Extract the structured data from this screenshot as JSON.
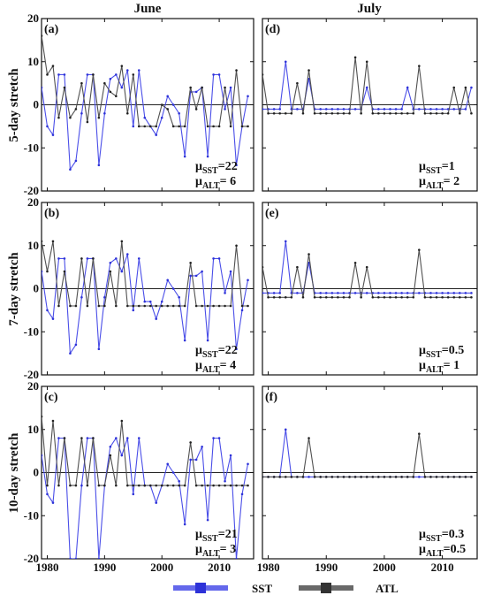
{
  "columns": [
    "June",
    "July"
  ],
  "row_labels": [
    "5-day stretch",
    "7-day stretch",
    "10-day stretch"
  ],
  "legend": [
    {
      "name": "SST",
      "color": "#4a4ee8"
    },
    {
      "name": "ATL",
      "color": "#505050"
    }
  ],
  "x_ticks": [
    1980,
    1990,
    2000,
    2010
  ],
  "chart_data": [
    {
      "type": "line",
      "panel_label": "(a)",
      "xlim": [
        1979,
        2016
      ],
      "ylim": [
        -20,
        20
      ],
      "yticks": [
        -20,
        -10,
        0,
        10,
        20
      ],
      "mu_lines": [
        {
          "sub": "SST",
          "value": "=22"
        },
        {
          "sub": "ALT",
          "value": "= 6"
        }
      ],
      "series": [
        {
          "name": "SST",
          "x": [
            1979,
            1980,
            1981,
            1982,
            1983,
            1984,
            1985,
            1986,
            1987,
            1988,
            1989,
            1990,
            1991,
            1992,
            1993,
            1994,
            1995,
            1996,
            1997,
            1998,
            1999,
            2000,
            2001,
            2002,
            2003,
            2004,
            2005,
            2006,
            2007,
            2008,
            2009,
            2010,
            2011,
            2012,
            2013,
            2014,
            2015
          ],
          "values": [
            4,
            -5,
            -7,
            7,
            7,
            -15,
            -13,
            -2,
            7,
            7,
            -14,
            -2,
            6,
            7,
            4,
            8,
            -5,
            8,
            -3,
            -5,
            -7,
            -3,
            2,
            0,
            -2,
            -12,
            3,
            3,
            4,
            -12,
            7,
            7,
            -1,
            4,
            -14,
            -5,
            2
          ]
        },
        {
          "name": "ATL",
          "x": [
            1979,
            1980,
            1981,
            1982,
            1983,
            1984,
            1985,
            1986,
            1987,
            1988,
            1989,
            1990,
            1991,
            1992,
            1993,
            1994,
            1995,
            1996,
            1997,
            1998,
            1999,
            2000,
            2001,
            2002,
            2003,
            2004,
            2005,
            2006,
            2007,
            2008,
            2009,
            2010,
            2011,
            2012,
            2013,
            2014,
            2015
          ],
          "values": [
            16,
            7,
            9,
            -3,
            4,
            -3,
            -1,
            5,
            -4,
            7,
            -3,
            5,
            3,
            2,
            9,
            -2,
            7,
            -5,
            -5,
            -5,
            -5,
            0,
            -1,
            -5,
            -5,
            -5,
            4,
            -1,
            4,
            -5,
            -5,
            -5,
            4,
            -5,
            8,
            -5,
            -5
          ]
        }
      ]
    },
    {
      "type": "line",
      "panel_label": "(d)",
      "xlim": [
        1979,
        2016
      ],
      "ylim": [
        -20,
        20
      ],
      "yticks": [
        -20,
        -10,
        0,
        10,
        20
      ],
      "mu_lines": [
        {
          "sub": "SST",
          "value": "=1"
        },
        {
          "sub": "ALT",
          "value": "= 2"
        }
      ],
      "series": [
        {
          "name": "SST",
          "x": [
            1979,
            1980,
            1981,
            1982,
            1983,
            1984,
            1985,
            1986,
            1987,
            1988,
            1989,
            1990,
            1991,
            1992,
            1993,
            1994,
            1995,
            1996,
            1997,
            1998,
            1999,
            2000,
            2001,
            2002,
            2003,
            2004,
            2005,
            2006,
            2007,
            2008,
            2009,
            2010,
            2011,
            2012,
            2013,
            2014,
            2015
          ],
          "values": [
            -1,
            -1,
            -1,
            -1,
            10,
            -1,
            -1,
            -1,
            6,
            -1,
            -1,
            -1,
            -1,
            -1,
            -1,
            -1,
            -1,
            -1,
            4,
            -1,
            -1,
            -1,
            -1,
            -1,
            -1,
            4,
            -1,
            -1,
            -1,
            -1,
            -1,
            -1,
            -1,
            -1,
            -1,
            -1,
            4
          ]
        },
        {
          "name": "ATL",
          "x": [
            1979,
            1980,
            1981,
            1982,
            1983,
            1984,
            1985,
            1986,
            1987,
            1988,
            1989,
            1990,
            1991,
            1992,
            1993,
            1994,
            1995,
            1996,
            1997,
            1998,
            1999,
            2000,
            2001,
            2002,
            2003,
            2004,
            2005,
            2006,
            2007,
            2008,
            2009,
            2010,
            2011,
            2012,
            2013,
            2014,
            2015
          ],
          "values": [
            7,
            -2,
            -2,
            -2,
            -2,
            -2,
            5,
            -2,
            8,
            -2,
            -2,
            -2,
            -2,
            -2,
            -2,
            -2,
            11,
            -2,
            10,
            -2,
            -2,
            -2,
            -2,
            -2,
            -2,
            -2,
            -2,
            9,
            -2,
            -2,
            -2,
            -2,
            -2,
            4,
            -2,
            4,
            -2
          ]
        }
      ]
    },
    {
      "type": "line",
      "panel_label": "(b)",
      "xlim": [
        1979,
        2016
      ],
      "ylim": [
        -20,
        20
      ],
      "yticks": [
        -20,
        -10,
        0,
        10,
        20
      ],
      "mu_lines": [
        {
          "sub": "SST",
          "value": "=22"
        },
        {
          "sub": "ALT",
          "value": "= 4"
        }
      ],
      "series": [
        {
          "name": "SST",
          "x": [
            1979,
            1980,
            1981,
            1982,
            1983,
            1984,
            1985,
            1986,
            1987,
            1988,
            1989,
            1990,
            1991,
            1992,
            1993,
            1994,
            1995,
            1996,
            1997,
            1998,
            1999,
            2000,
            2001,
            2002,
            2003,
            2004,
            2005,
            2006,
            2007,
            2008,
            2009,
            2010,
            2011,
            2012,
            2013,
            2014,
            2015
          ],
          "values": [
            4,
            -5,
            -7,
            7,
            7,
            -15,
            -13,
            -2,
            7,
            7,
            -14,
            -2,
            6,
            7,
            4,
            8,
            -5,
            7,
            -3,
            -3,
            -7,
            -3,
            2,
            0,
            -2,
            -12,
            3,
            3,
            4,
            -12,
            7,
            7,
            -1,
            4,
            -14,
            -5,
            2
          ]
        },
        {
          "name": "ATL",
          "x": [
            1979,
            1980,
            1981,
            1982,
            1983,
            1984,
            1985,
            1986,
            1987,
            1988,
            1989,
            1990,
            1991,
            1992,
            1993,
            1994,
            1995,
            1996,
            1997,
            1998,
            1999,
            2000,
            2001,
            2002,
            2003,
            2004,
            2005,
            2006,
            2007,
            2008,
            2009,
            2010,
            2011,
            2012,
            2013,
            2014,
            2015
          ],
          "values": [
            11,
            4,
            11,
            -4,
            4,
            -4,
            -4,
            7,
            -4,
            7,
            -4,
            -4,
            4,
            -4,
            11,
            -4,
            -4,
            -4,
            -4,
            -4,
            -4,
            -4,
            -4,
            -4,
            -4,
            -4,
            6,
            -4,
            -4,
            -4,
            -4,
            -4,
            -4,
            -4,
            10,
            -4,
            -4
          ]
        }
      ]
    },
    {
      "type": "line",
      "panel_label": "(e)",
      "xlim": [
        1979,
        2016
      ],
      "ylim": [
        -20,
        20
      ],
      "yticks": [
        -20,
        -10,
        0,
        10,
        20
      ],
      "mu_lines": [
        {
          "sub": "SST",
          "value": "=0.5"
        },
        {
          "sub": "ALT",
          "value": "= 1"
        }
      ],
      "series": [
        {
          "name": "SST",
          "x": [
            1979,
            1980,
            1981,
            1982,
            1983,
            1984,
            1985,
            1986,
            1987,
            1988,
            1989,
            1990,
            1991,
            1992,
            1993,
            1994,
            1995,
            1996,
            1997,
            1998,
            1999,
            2000,
            2001,
            2002,
            2003,
            2004,
            2005,
            2006,
            2007,
            2008,
            2009,
            2010,
            2011,
            2012,
            2013,
            2014,
            2015
          ],
          "values": [
            -1,
            -1,
            -1,
            -1,
            11,
            -1,
            -1,
            -1,
            6,
            -1,
            -1,
            -1,
            -1,
            -1,
            -1,
            -1,
            -1,
            -1,
            -1,
            -1,
            -1,
            -1,
            -1,
            -1,
            -1,
            -1,
            -1,
            -1,
            -1,
            -1,
            -1,
            -1,
            -1,
            -1,
            -1,
            -1,
            -1
          ]
        },
        {
          "name": "ATL",
          "x": [
            1979,
            1980,
            1981,
            1982,
            1983,
            1984,
            1985,
            1986,
            1987,
            1988,
            1989,
            1990,
            1991,
            1992,
            1993,
            1994,
            1995,
            1996,
            1997,
            1998,
            1999,
            2000,
            2001,
            2002,
            2003,
            2004,
            2005,
            2006,
            2007,
            2008,
            2009,
            2010,
            2011,
            2012,
            2013,
            2014,
            2015
          ],
          "values": [
            5,
            -2,
            -2,
            -2,
            -2,
            -2,
            5,
            -2,
            8,
            -2,
            -2,
            -2,
            -2,
            -2,
            -2,
            -2,
            6,
            -2,
            5,
            -2,
            -2,
            -2,
            -2,
            -2,
            -2,
            -2,
            -2,
            9,
            -2,
            -2,
            -2,
            -2,
            -2,
            -2,
            -2,
            -2,
            -2
          ]
        }
      ]
    },
    {
      "type": "line",
      "panel_label": "(c)",
      "xlim": [
        1979,
        2016
      ],
      "ylim": [
        -20,
        20
      ],
      "yticks": [
        -20,
        -10,
        0,
        10,
        20
      ],
      "mu_lines": [
        {
          "sub": "SST",
          "value": "=21"
        },
        {
          "sub": "ALT",
          "value": "= 3"
        }
      ],
      "series": [
        {
          "name": "SST",
          "x": [
            1979,
            1980,
            1981,
            1982,
            1983,
            1984,
            1985,
            1986,
            1987,
            1988,
            1989,
            1990,
            1991,
            1992,
            1993,
            1994,
            1995,
            1996,
            1997,
            1998,
            1999,
            2000,
            2001,
            2002,
            2003,
            2004,
            2005,
            2006,
            2007,
            2008,
            2009,
            2010,
            2011,
            2012,
            2013,
            2014,
            2015
          ],
          "values": [
            4,
            -5,
            -7,
            8,
            8,
            -20,
            -20,
            -3,
            8,
            8,
            -20,
            -3,
            6,
            8,
            4,
            8,
            -5,
            8,
            -3,
            -3,
            -7,
            -3,
            2,
            0,
            -2,
            -12,
            3,
            3,
            6,
            -11,
            8,
            8,
            -2,
            4,
            -20,
            -5,
            2
          ]
        },
        {
          "name": "ATL",
          "x": [
            1979,
            1980,
            1981,
            1982,
            1983,
            1984,
            1985,
            1986,
            1987,
            1988,
            1989,
            1990,
            1991,
            1992,
            1993,
            1994,
            1995,
            1996,
            1997,
            1998,
            1999,
            2000,
            2001,
            2002,
            2003,
            2004,
            2005,
            2006,
            2007,
            2008,
            2009,
            2010,
            2011,
            2012,
            2013,
            2014,
            2015
          ],
          "values": [
            13,
            -3,
            12,
            -3,
            8,
            -3,
            -3,
            8,
            -3,
            8,
            -3,
            -3,
            4,
            -3,
            12,
            -3,
            -3,
            -3,
            -3,
            -3,
            -3,
            -3,
            -3,
            -3,
            -3,
            -3,
            7,
            -3,
            -3,
            -3,
            -3,
            -3,
            -3,
            -3,
            -3,
            -3,
            -3
          ]
        }
      ]
    },
    {
      "type": "line",
      "panel_label": "(f)",
      "xlim": [
        1979,
        2016
      ],
      "ylim": [
        -20,
        20
      ],
      "yticks": [
        -20,
        -10,
        0,
        10,
        20
      ],
      "mu_lines": [
        {
          "sub": "SST",
          "value": "=0.3"
        },
        {
          "sub": "ALT",
          "value": "=0.5"
        }
      ],
      "series": [
        {
          "name": "SST",
          "x": [
            1979,
            1980,
            1981,
            1982,
            1983,
            1984,
            1985,
            1986,
            1987,
            1988,
            1989,
            1990,
            1991,
            1992,
            1993,
            1994,
            1995,
            1996,
            1997,
            1998,
            1999,
            2000,
            2001,
            2002,
            2003,
            2004,
            2005,
            2006,
            2007,
            2008,
            2009,
            2010,
            2011,
            2012,
            2013,
            2014,
            2015
          ],
          "values": [
            -1,
            -1,
            -1,
            -1,
            10,
            -1,
            -1,
            -1,
            -1,
            -1,
            -1,
            -1,
            -1,
            -1,
            -1,
            -1,
            -1,
            -1,
            -1,
            -1,
            -1,
            -1,
            -1,
            -1,
            -1,
            -1,
            -1,
            -1,
            -1,
            -1,
            -1,
            -1,
            -1,
            -1,
            -1,
            -1,
            -1
          ]
        },
        {
          "name": "ATL",
          "x": [
            1979,
            1980,
            1981,
            1982,
            1983,
            1984,
            1985,
            1986,
            1987,
            1988,
            1989,
            1990,
            1991,
            1992,
            1993,
            1994,
            1995,
            1996,
            1997,
            1998,
            1999,
            2000,
            2001,
            2002,
            2003,
            2004,
            2005,
            2006,
            2007,
            2008,
            2009,
            2010,
            2011,
            2012,
            2013,
            2014,
            2015
          ],
          "values": [
            -1,
            -1,
            -1,
            -1,
            -1,
            -1,
            -1,
            -1,
            8,
            -1,
            -1,
            -1,
            -1,
            -1,
            -1,
            -1,
            -1,
            -1,
            -1,
            -1,
            -1,
            -1,
            -1,
            -1,
            -1,
            -1,
            -1,
            9,
            -1,
            -1,
            -1,
            -1,
            -1,
            -1,
            -1,
            -1,
            -1
          ]
        }
      ]
    }
  ]
}
